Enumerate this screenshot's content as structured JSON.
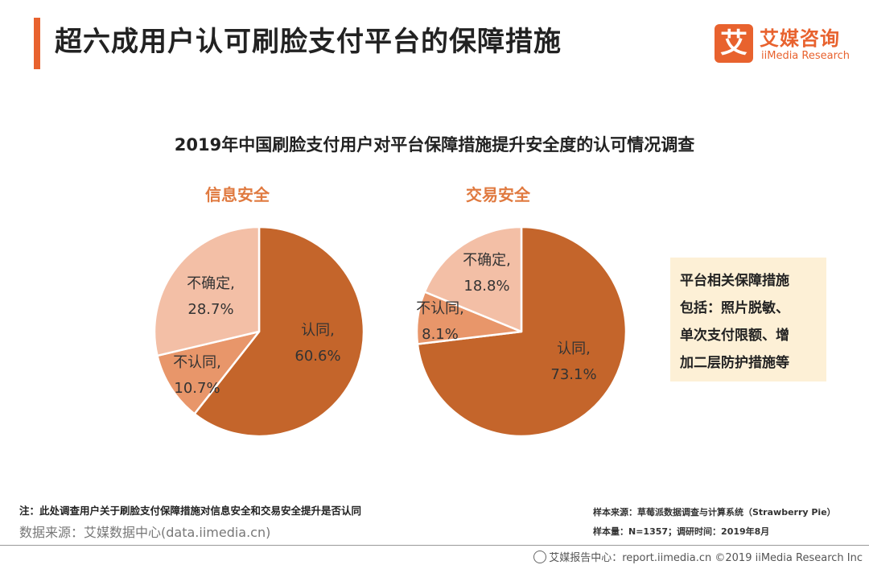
{
  "header": {
    "title": "超六成用户认可刷脸支付平台的保障措施"
  },
  "logo": {
    "mark": "艾",
    "name_cn": "艾媒咨询",
    "name_en": "iiMedia Research"
  },
  "colors": {
    "accent": "#e8622e",
    "agree": "#c4652b",
    "disagree": "#e8966a",
    "unsure": "#f3bfa6"
  },
  "chart_data": {
    "type": "pie",
    "title": "2019年中国刷脸支付用户对平台保障措施提升安全度的认可情况调查",
    "charts": [
      {
        "title": "信息安全",
        "slices": [
          {
            "label": "认同,",
            "value": 60.6,
            "value_text": "60.6%"
          },
          {
            "label": "不认同,",
            "value": 10.7,
            "value_text": "10.7%"
          },
          {
            "label": "不确定,",
            "value": 28.7,
            "value_text": "28.7%"
          }
        ]
      },
      {
        "title": "交易安全",
        "slices": [
          {
            "label": "认同,",
            "value": 73.1,
            "value_text": "73.1%"
          },
          {
            "label": "不认同,",
            "value": 8.1,
            "value_text": "8.1%"
          },
          {
            "label": "不确定,",
            "value": 18.8,
            "value_text": "18.8%"
          }
        ]
      }
    ]
  },
  "note_box": {
    "lines": [
      "平台相关保障措施",
      "包括：照片脱敏、",
      "单次支付限额、增",
      "加二层防护措施等"
    ]
  },
  "footnote": "注：此处调查用户关于刷脸支付保障措施对信息安全和交易安全提升是否认同",
  "source": "数据来源：艾媒数据中心(data.iimedia.cn)",
  "sample": {
    "source": "样本来源：草莓派数据调查与计算系统（Strawberry Pie）",
    "size": "样本量：N=1357；调研时间：2019年8月"
  },
  "footer": "艾媒报告中心：report.iimedia.cn  ©2019  iiMedia Research Inc"
}
